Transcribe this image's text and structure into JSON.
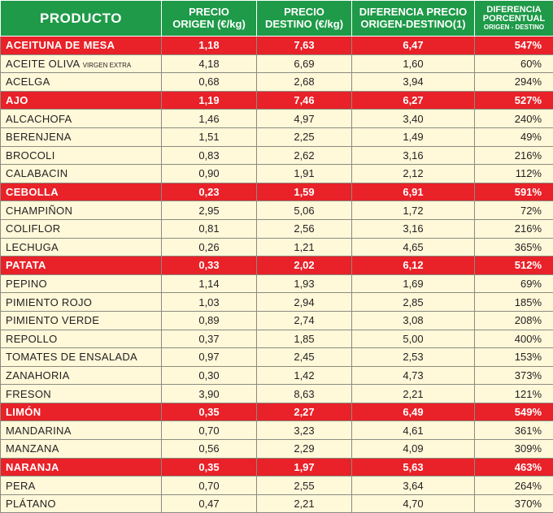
{
  "header": {
    "producto": "PRODUCTO",
    "origen_line1": "PRECIO",
    "origen_line2": "ORIGEN (€/kg)",
    "destino_line1": "PRECIO",
    "destino_line2": "DESTINO (€/kg)",
    "diferencia_line1": "DIFERENCIA PRECIO",
    "diferencia_line2": "ORIGEN-DESTINO(1)",
    "porcentual_line1": "DIFERENCIA",
    "porcentual_line2": "PORCENTUAL",
    "porcentual_line3": "ORIGEN - DESTINO"
  },
  "colors": {
    "header_green": "#1e9a48",
    "highlight_red": "#e92128",
    "row_cream": "#fff8d9"
  },
  "rows": [
    {
      "name": "ACEITUNA DE MESA",
      "suffix": "",
      "origen": "1,18",
      "destino": "7,63",
      "diferencia": "6,47",
      "porcentaje": "547%",
      "highlight": true
    },
    {
      "name": "ACEITE OLIVA",
      "suffix": "VIRGEN EXTRA",
      "origen": "4,18",
      "destino": "6,69",
      "diferencia": "1,60",
      "porcentaje": "60%",
      "highlight": false
    },
    {
      "name": "ACELGA",
      "suffix": "",
      "origen": "0,68",
      "destino": "2,68",
      "diferencia": "3,94",
      "porcentaje": "294%",
      "highlight": false
    },
    {
      "name": "AJO",
      "suffix": "",
      "origen": "1,19",
      "destino": "7,46",
      "diferencia": "6,27",
      "porcentaje": "527%",
      "highlight": true
    },
    {
      "name": "ALCACHOFA",
      "suffix": "",
      "origen": "1,46",
      "destino": "4,97",
      "diferencia": "3,40",
      "porcentaje": "240%",
      "highlight": false
    },
    {
      "name": "BERENJENA",
      "suffix": "",
      "origen": "1,51",
      "destino": "2,25",
      "diferencia": "1,49",
      "porcentaje": "49%",
      "highlight": false
    },
    {
      "name": "BROCOLI",
      "suffix": "",
      "origen": "0,83",
      "destino": "2,62",
      "diferencia": "3,16",
      "porcentaje": "216%",
      "highlight": false
    },
    {
      "name": "CALABACIN",
      "suffix": "",
      "origen": "0,90",
      "destino": "1,91",
      "diferencia": "2,12",
      "porcentaje": "112%",
      "highlight": false
    },
    {
      "name": "CEBOLLA",
      "suffix": "",
      "origen": "0,23",
      "destino": "1,59",
      "diferencia": "6,91",
      "porcentaje": "591%",
      "highlight": true
    },
    {
      "name": "CHAMPIÑON",
      "suffix": "",
      "origen": "2,95",
      "destino": "5,06",
      "diferencia": "1,72",
      "porcentaje": "72%",
      "highlight": false
    },
    {
      "name": "COLIFLOR",
      "suffix": "",
      "origen": "0,81",
      "destino": "2,56",
      "diferencia": "3,16",
      "porcentaje": "216%",
      "highlight": false
    },
    {
      "name": "LECHUGA",
      "suffix": "",
      "origen": "0,26",
      "destino": "1,21",
      "diferencia": "4,65",
      "porcentaje": "365%",
      "highlight": false
    },
    {
      "name": "PATATA",
      "suffix": "",
      "origen": "0,33",
      "destino": "2,02",
      "diferencia": "6,12",
      "porcentaje": "512%",
      "highlight": true
    },
    {
      "name": "PEPINO",
      "suffix": "",
      "origen": "1,14",
      "destino": "1,93",
      "diferencia": "1,69",
      "porcentaje": "69%",
      "highlight": false
    },
    {
      "name": "PIMIENTO ROJO",
      "suffix": "",
      "origen": "1,03",
      "destino": "2,94",
      "diferencia": "2,85",
      "porcentaje": "185%",
      "highlight": false
    },
    {
      "name": "PIMIENTO VERDE",
      "suffix": "",
      "origen": "0,89",
      "destino": "2,74",
      "diferencia": "3,08",
      "porcentaje": "208%",
      "highlight": false
    },
    {
      "name": "REPOLLO",
      "suffix": "",
      "origen": "0,37",
      "destino": "1,85",
      "diferencia": "5,00",
      "porcentaje": "400%",
      "highlight": false
    },
    {
      "name": "TOMATES DE ENSALADA",
      "suffix": "",
      "origen": "0,97",
      "destino": "2,45",
      "diferencia": "2,53",
      "porcentaje": "153%",
      "highlight": false
    },
    {
      "name": "ZANAHORIA",
      "suffix": "",
      "origen": "0,30",
      "destino": "1,42",
      "diferencia": "4,73",
      "porcentaje": "373%",
      "highlight": false
    },
    {
      "name": "FRESON",
      "suffix": "",
      "origen": "3,90",
      "destino": "8,63",
      "diferencia": "2,21",
      "porcentaje": "121%",
      "highlight": false
    },
    {
      "name": "LIMÓN",
      "suffix": "",
      "origen": "0,35",
      "destino": "2,27",
      "diferencia": "6,49",
      "porcentaje": "549%",
      "highlight": true
    },
    {
      "name": "MANDARINA",
      "suffix": "",
      "origen": "0,70",
      "destino": "3,23",
      "diferencia": "4,61",
      "porcentaje": "361%",
      "highlight": false
    },
    {
      "name": "MANZANA",
      "suffix": "",
      "origen": "0,56",
      "destino": "2,29",
      "diferencia": "4,09",
      "porcentaje": "309%",
      "highlight": false
    },
    {
      "name": "NARANJA",
      "suffix": "",
      "origen": "0,35",
      "destino": "1,97",
      "diferencia": "5,63",
      "porcentaje": "463%",
      "highlight": true
    },
    {
      "name": "PERA",
      "suffix": "",
      "origen": "0,70",
      "destino": "2,55",
      "diferencia": "3,64",
      "porcentaje": "264%",
      "highlight": false
    },
    {
      "name": "PLÁTANO",
      "suffix": "",
      "origen": "0,47",
      "destino": "2,21",
      "diferencia": "4,70",
      "porcentaje": "370%",
      "highlight": false
    }
  ]
}
